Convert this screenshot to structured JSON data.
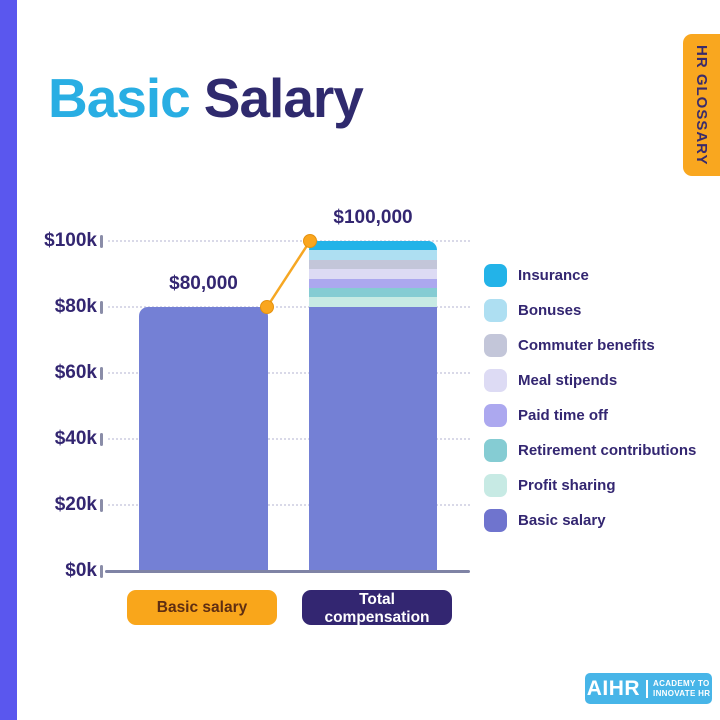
{
  "page": {
    "title_accent": "Basic",
    "title_rest": "Salary",
    "tab_label": "HR GLOSSARY"
  },
  "chart_data": {
    "type": "bar",
    "stacked": true,
    "title": "Basic Salary",
    "categories": [
      "Basic salary",
      "Total compensation"
    ],
    "y_ticks": [
      "$0k",
      "$20k",
      "$40k",
      "$60k",
      "$80k",
      "$100k"
    ],
    "y_tick_values": [
      0,
      20000,
      40000,
      60000,
      80000,
      100000
    ],
    "ylim": [
      0,
      100000
    ],
    "grid": "dotted-horizontal",
    "legend_position": "right",
    "connector_color": "#f6a723",
    "bars": [
      {
        "label": "Basic salary",
        "total": 80000,
        "total_label": "$80,000",
        "segments_top_to_bottom": [
          {
            "name": "Basic salary",
            "value": 80000,
            "color": "#7480d5"
          }
        ]
      },
      {
        "label": "Total compensation",
        "total": 100000,
        "total_label": "$100,000",
        "segments_top_to_bottom": [
          {
            "name": "Insurance",
            "value": 2857,
            "color": "#23b3e8"
          },
          {
            "name": "Bonuses",
            "value": 2857,
            "color": "#aedff2"
          },
          {
            "name": "Commuter benefits",
            "value": 2857,
            "color": "#c3c6d9"
          },
          {
            "name": "Meal stipends",
            "value": 2857,
            "color": "#dddbf4"
          },
          {
            "name": "Paid time off",
            "value": 2857,
            "color": "#aca8ef"
          },
          {
            "name": "Retirement contributions",
            "value": 2857,
            "color": "#85ccd3"
          },
          {
            "name": "Profit sharing",
            "value": 2858,
            "color": "#c7eae4"
          },
          {
            "name": "Basic salary",
            "value": 80000,
            "color": "#7480d5"
          }
        ]
      }
    ],
    "legend": [
      {
        "label": "Insurance",
        "color": "#23b3e8"
      },
      {
        "label": "Bonuses",
        "color": "#aedff2"
      },
      {
        "label": "Commuter benefits",
        "color": "#c3c6d9"
      },
      {
        "label": "Meal stipends",
        "color": "#dddbf4"
      },
      {
        "label": "Paid time off",
        "color": "#aca8ef"
      },
      {
        "label": "Retirement contributions",
        "color": "#85ccd3"
      },
      {
        "label": "Profit sharing",
        "color": "#c7eae4"
      },
      {
        "label": "Basic salary",
        "color": "#6f74ce"
      }
    ]
  },
  "footer": {
    "logo_text": "AIHR",
    "logo_sub1": "ACADEMY TO",
    "logo_sub2": "INNOVATE HR"
  }
}
